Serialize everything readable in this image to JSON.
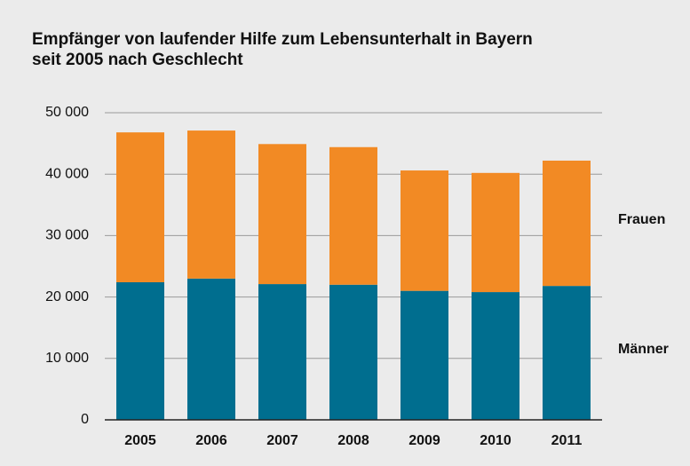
{
  "chart_data": {
    "type": "stacked_bar",
    "title": [
      "Empfänger von laufender Hilfe zum Lebensunterhalt in Bayern",
      "seit 2005 nach Geschlecht"
    ],
    "categories": [
      "2005",
      "2006",
      "2007",
      "2008",
      "2009",
      "2010",
      "2011"
    ],
    "series": [
      {
        "name": "Männer",
        "color": "#006e8f",
        "values": [
          22400,
          23000,
          22100,
          22000,
          21000,
          20800,
          21800
        ]
      },
      {
        "name": "Frauen",
        "color": "#f28a24",
        "values": [
          24400,
          24100,
          22800,
          22400,
          19600,
          19400,
          20400
        ]
      }
    ],
    "ylim": [
      0,
      50000
    ],
    "yticks": [
      0,
      {
        "value": 10000,
        "label": "10 000"
      },
      {
        "value": 20000,
        "label": "20 000"
      },
      {
        "value": 30000,
        "label": "30 000"
      },
      {
        "value": 40000,
        "label": "40 000"
      },
      {
        "value": 50000,
        "label": "50 000"
      }
    ],
    "grid": true
  }
}
